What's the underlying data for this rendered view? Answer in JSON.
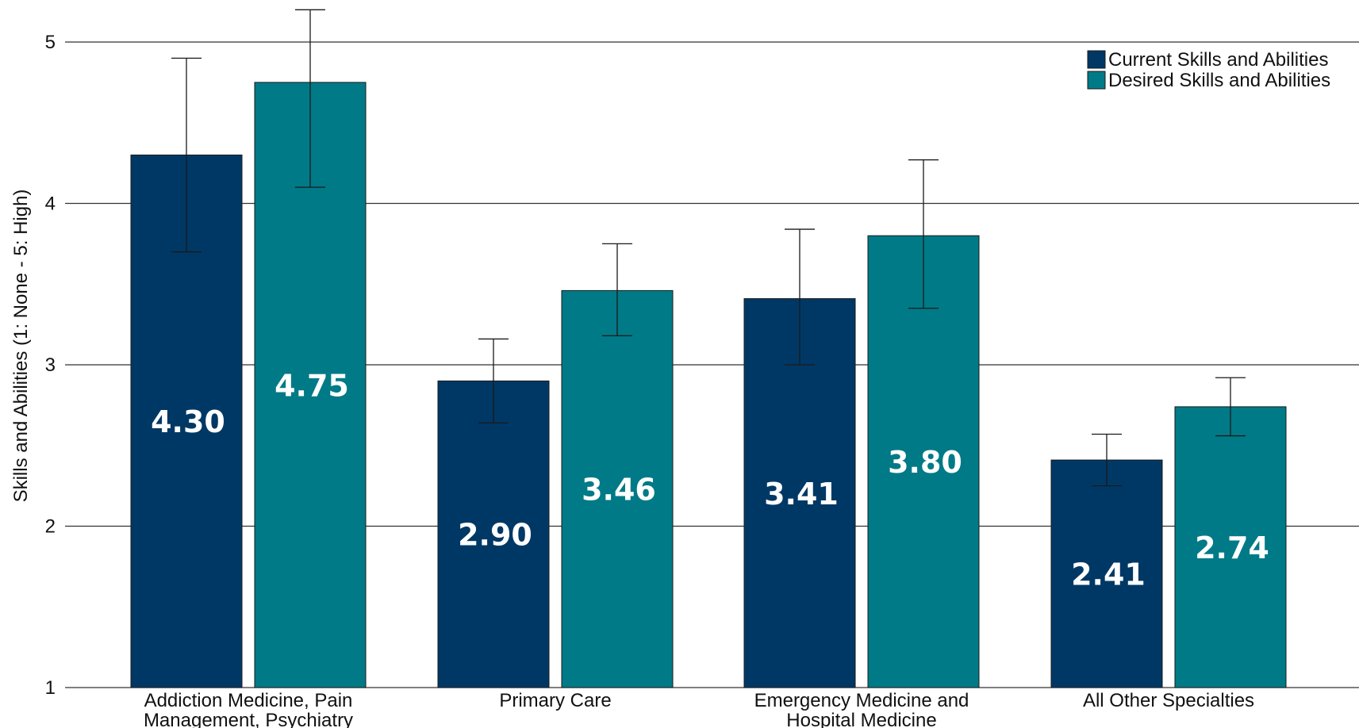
{
  "chart_data": {
    "type": "bar",
    "title": "",
    "xlabel": "",
    "ylabel": "Skills and Abilities (1: None - 5: High)",
    "ylim": [
      1,
      5
    ],
    "yticks": [
      1,
      2,
      3,
      4,
      5
    ],
    "grid": "horizontal",
    "legend_position": "top-right",
    "categories": [
      [
        "Addiction Medicine, Pain",
        "Management, Psychiatry"
      ],
      [
        "Primary Care"
      ],
      [
        "Emergency Medicine and",
        "Hospital Medicine"
      ],
      [
        "All Other Specialties"
      ]
    ],
    "series": [
      {
        "name": "Current Skills and Abilities",
        "color": "#003865",
        "values": [
          4.3,
          2.9,
          3.41,
          2.41
        ],
        "value_labels": [
          "4.30",
          "2.90",
          "3.41",
          "2.41"
        ],
        "error_low": [
          3.7,
          2.64,
          3.0,
          2.25
        ],
        "error_high": [
          4.9,
          3.16,
          3.84,
          2.57
        ]
      },
      {
        "name": "Desired Skills and Abilities",
        "color": "#007A87",
        "values": [
          4.75,
          3.46,
          3.8,
          2.74
        ],
        "value_labels": [
          "4.75",
          "3.46",
          "3.80",
          "2.74"
        ],
        "error_low": [
          4.1,
          3.18,
          3.35,
          2.56
        ],
        "error_high": [
          5.2,
          3.75,
          4.27,
          2.92
        ]
      }
    ]
  }
}
